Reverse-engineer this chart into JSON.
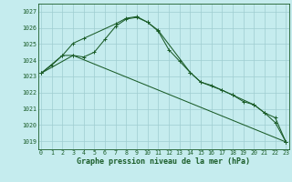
{
  "title": "Graphe pression niveau de la mer (hPa)",
  "bg_color": "#c5ecee",
  "grid_color": "#9fcdd0",
  "line_color": "#1a5c28",
  "ylim": [
    1018.5,
    1027.5
  ],
  "xlim": [
    -0.3,
    23.3
  ],
  "yticks": [
    1019,
    1020,
    1021,
    1022,
    1023,
    1024,
    1025,
    1026,
    1027
  ],
  "xticks": [
    0,
    1,
    2,
    3,
    4,
    5,
    6,
    7,
    8,
    9,
    10,
    11,
    12,
    13,
    14,
    15,
    16,
    17,
    18,
    19,
    20,
    21,
    22,
    23
  ],
  "series1_x": [
    0,
    1,
    2,
    3,
    4,
    5,
    6,
    7,
    8,
    9,
    10,
    11,
    12,
    13,
    14,
    15,
    16,
    17,
    18,
    19,
    20,
    21,
    22,
    23
  ],
  "series1_y": [
    1023.2,
    1023.7,
    1024.3,
    1024.3,
    1024.2,
    1024.5,
    1025.3,
    1026.1,
    1026.55,
    1026.65,
    1026.35,
    1025.8,
    1024.65,
    1023.95,
    1023.25,
    1022.65,
    1022.45,
    1022.15,
    1021.85,
    1021.45,
    1021.25,
    1020.75,
    1020.45,
    1018.95
  ],
  "series2_x": [
    0,
    2,
    3,
    4,
    7,
    8,
    9,
    10,
    11,
    14,
    15,
    17,
    18,
    20,
    21,
    22,
    23
  ],
  "series2_y": [
    1023.2,
    1024.3,
    1025.05,
    1025.35,
    1026.25,
    1026.6,
    1026.7,
    1026.35,
    1025.85,
    1023.25,
    1022.65,
    1022.15,
    1021.85,
    1021.25,
    1020.75,
    1020.15,
    1018.95
  ],
  "series3_x": [
    0,
    3,
    23
  ],
  "series3_y": [
    1023.2,
    1024.3,
    1018.95
  ],
  "marker_size": 2.5,
  "tick_fontsize": 4.8,
  "label_fontsize": 6.0
}
